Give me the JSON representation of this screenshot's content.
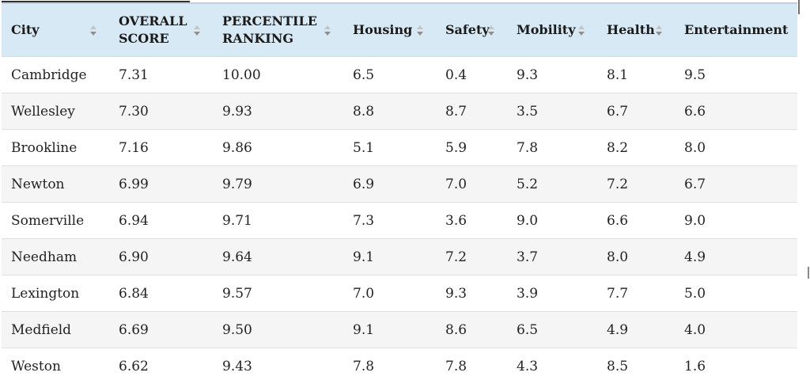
{
  "table": {
    "columns": [
      {
        "label": "City",
        "sortable": true
      },
      {
        "label": "OVERALL SCORE",
        "sortable": true
      },
      {
        "label": "PERCENTILE RANKING",
        "sortable": true
      },
      {
        "label": "Housing",
        "sortable": true
      },
      {
        "label": "Safety",
        "sortable": true
      },
      {
        "label": "Mobility",
        "sortable": true
      },
      {
        "label": "Health",
        "sortable": true
      },
      {
        "label": "Entertainment",
        "sortable": true
      }
    ],
    "rows": [
      [
        "Cambridge",
        "7.31",
        "10.00",
        "6.5",
        "0.4",
        "9.3",
        "8.1",
        "9.5"
      ],
      [
        "Wellesley",
        "7.30",
        "9.93",
        "8.8",
        "8.7",
        "3.5",
        "6.7",
        "6.6"
      ],
      [
        "Brookline",
        "7.16",
        "9.86",
        "5.1",
        "5.9",
        "7.8",
        "8.2",
        "8.0"
      ],
      [
        "Newton",
        "6.99",
        "9.79",
        "6.9",
        "7.0",
        "5.2",
        "7.2",
        "6.7"
      ],
      [
        "Somerville",
        "6.94",
        "9.71",
        "7.3",
        "3.6",
        "9.0",
        "6.6",
        "9.0"
      ],
      [
        "Needham",
        "6.90",
        "9.64",
        "9.1",
        "7.2",
        "3.7",
        "8.0",
        "4.9"
      ],
      [
        "Lexington",
        "6.84",
        "9.57",
        "7.0",
        "9.3",
        "3.9",
        "7.7",
        "5.0"
      ],
      [
        "Medfield",
        "6.69",
        "9.50",
        "9.1",
        "8.6",
        "6.5",
        "4.9",
        "4.0"
      ],
      [
        "Weston",
        "6.62",
        "9.43",
        "7.8",
        "7.8",
        "4.3",
        "8.5",
        "1.6"
      ]
    ],
    "colors": {
      "header_bg": "#d6e9f4",
      "zebra_bg": "#f5f5f5",
      "arrow_up": "#c4c4c4",
      "arrow_down": "#8f8f8f"
    }
  }
}
